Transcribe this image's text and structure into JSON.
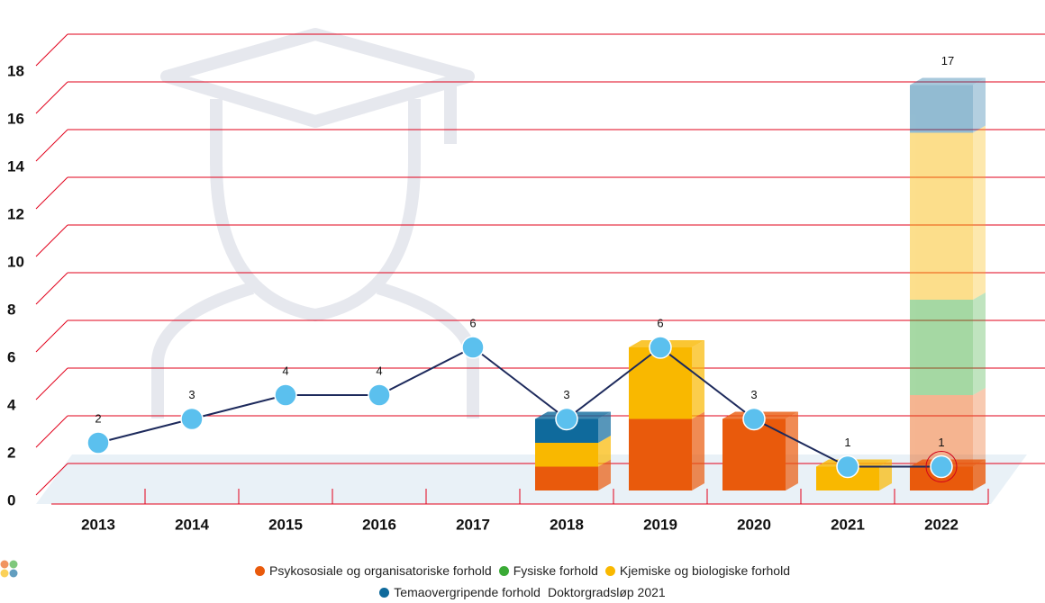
{
  "chart_data": {
    "type": "bar-line",
    "categories": [
      "2013",
      "2014",
      "2015",
      "2016",
      "2017",
      "2018",
      "2019",
      "2020",
      "2021",
      "2022"
    ],
    "ylim": [
      0,
      20
    ],
    "yticks": [
      0,
      2,
      4,
      6,
      8,
      10,
      12,
      14,
      16,
      18
    ],
    "grid": true,
    "grid_color": "#e2001a",
    "highlight_category": 9,
    "highlight_color": "#d0021b",
    "series": [
      {
        "name": "Psykososiale og organisatoriske forhold",
        "color": "#e95a0c",
        "values": [
          null,
          null,
          null,
          null,
          null,
          1,
          3,
          3,
          null,
          1
        ]
      },
      {
        "name": "Fysiske forhold",
        "color": "#3aaa35",
        "values": [
          null,
          null,
          null,
          null,
          null,
          null,
          null,
          null,
          null,
          null
        ]
      },
      {
        "name": "Kjemiske og biologiske forhold",
        "color": "#f9b800",
        "values": [
          null,
          null,
          null,
          null,
          null,
          1,
          3,
          null,
          1,
          null
        ]
      },
      {
        "name": "Temaovergripende forhold",
        "color": "#0f6a9c",
        "values": [
          null,
          null,
          null,
          null,
          null,
          1,
          null,
          null,
          null,
          null
        ]
      }
    ],
    "line": {
      "color": "#1d2a5c",
      "marker_color": "#5bc0ee",
      "values": [
        2,
        3,
        4,
        4,
        6,
        3,
        6,
        3,
        1,
        1
      ]
    },
    "doktorgrad": {
      "name": "Doktorgradsløp 2021",
      "category": 9,
      "values": [
        4,
        4,
        7,
        2
      ],
      "colors": [
        "#e95a0c",
        "#3aaa35",
        "#f9b800",
        "#0f6a9c"
      ],
      "opacity": 0.45,
      "total": 17
    }
  }
}
